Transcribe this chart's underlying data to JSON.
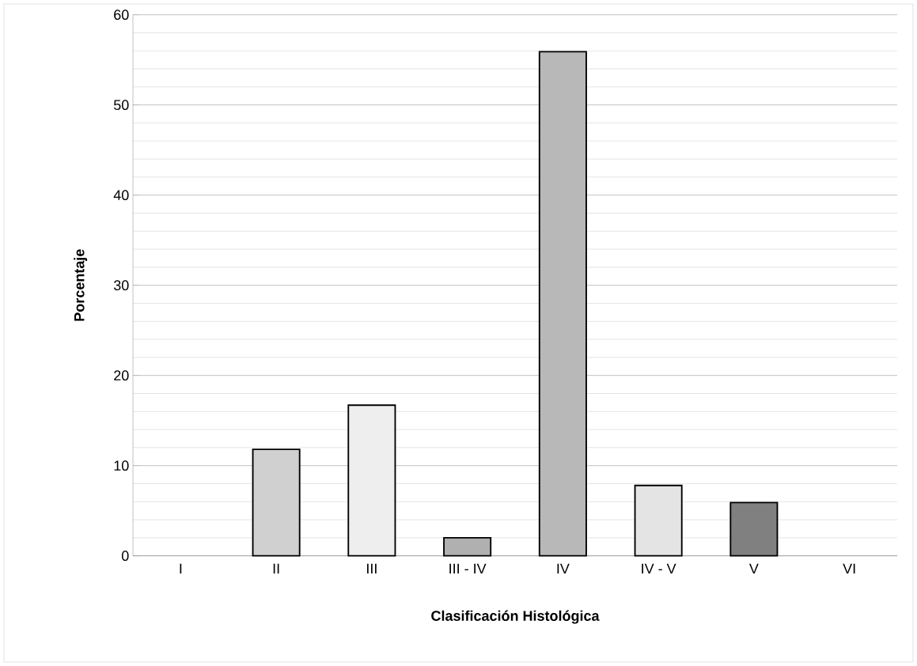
{
  "chart_data": {
    "type": "bar",
    "xlabel": "Clasificación Histológica",
    "ylabel": "Porcentaje",
    "categories": [
      "I",
      "II",
      "III",
      "III - IV",
      "IV",
      "IV - V",
      "V",
      "VI"
    ],
    "values": [
      0,
      11.8,
      16.7,
      2.0,
      55.9,
      7.8,
      5.9,
      0
    ],
    "colors": [
      "#d0d0d0",
      "#d0d0d0",
      "#eeeeee",
      "#b0b0b0",
      "#b8b8b8",
      "#e4e4e4",
      "#808080",
      "#d0d0d0"
    ],
    "ylim": [
      0,
      60
    ],
    "yticks": [
      0,
      10,
      20,
      30,
      40,
      50,
      60
    ],
    "grid": "y"
  }
}
